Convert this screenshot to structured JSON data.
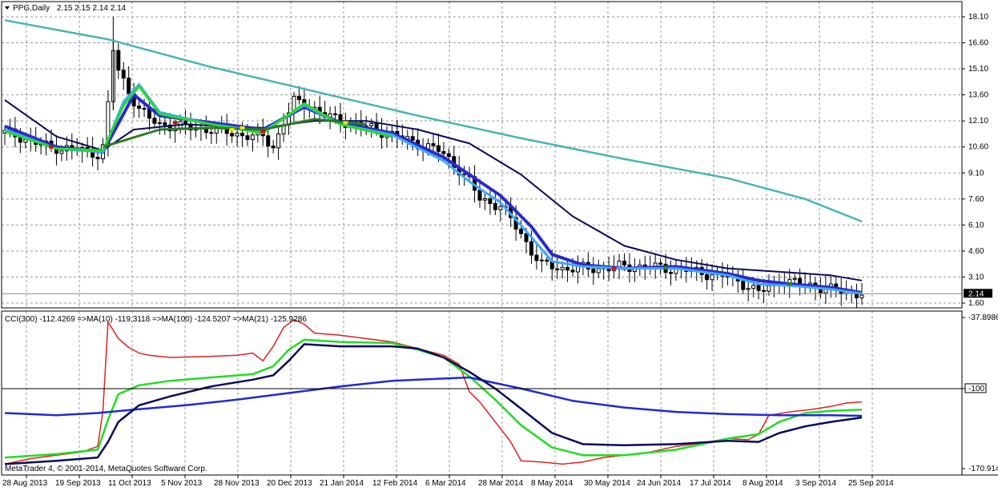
{
  "chart_data": [
    {
      "type": "candlestick",
      "title": "PPG,Daily",
      "ohlc_header": "2.15 2.15 2.14 2.14",
      "y_ticks": [
        "18.10",
        "16.60",
        "15.10",
        "13.60",
        "12.10",
        "10.60",
        "9.10",
        "7.60",
        "6.10",
        "4.60",
        "3.10",
        "1.60"
      ],
      "ylim": [
        1.6,
        18.1
      ],
      "last_price_label": "2.14",
      "last_price": 2.14,
      "close_path": [
        [
          0,
          11.4
        ],
        [
          3,
          11.2
        ],
        [
          6,
          10.8
        ],
        [
          9,
          10.6
        ],
        [
          12,
          10.5
        ],
        [
          15,
          10.4
        ],
        [
          18,
          10.2
        ],
        [
          19,
          10.6
        ],
        [
          20,
          13.0
        ],
        [
          21,
          16.2
        ],
        [
          22,
          15.0
        ],
        [
          24,
          13.8
        ],
        [
          26,
          12.8
        ],
        [
          28,
          12.2
        ],
        [
          30,
          11.9
        ],
        [
          33,
          11.8
        ],
        [
          36,
          11.7
        ],
        [
          40,
          11.6
        ],
        [
          44,
          11.4
        ],
        [
          48,
          11.2
        ],
        [
          50,
          11.2
        ],
        [
          52,
          10.6
        ],
        [
          54,
          12.0
        ],
        [
          56,
          13.2
        ],
        [
          58,
          13.1
        ],
        [
          60,
          12.8
        ],
        [
          62,
          12.4
        ],
        [
          65,
          12.1
        ],
        [
          68,
          11.9
        ],
        [
          72,
          11.6
        ],
        [
          76,
          11.2
        ],
        [
          80,
          10.8
        ],
        [
          84,
          10.4
        ],
        [
          86,
          9.9
        ],
        [
          88,
          9.3
        ],
        [
          90,
          8.6
        ],
        [
          92,
          7.6
        ],
        [
          94,
          7.4
        ],
        [
          96,
          7.2
        ],
        [
          98,
          6.4
        ],
        [
          100,
          5.6
        ],
        [
          102,
          4.6
        ],
        [
          104,
          3.8
        ],
        [
          108,
          3.6
        ],
        [
          112,
          3.6
        ],
        [
          116,
          3.6
        ],
        [
          120,
          3.7
        ],
        [
          124,
          3.7
        ],
        [
          128,
          3.6
        ],
        [
          132,
          3.5
        ],
        [
          136,
          3.3
        ],
        [
          140,
          3.1
        ],
        [
          144,
          2.6
        ],
        [
          146,
          2.2
        ],
        [
          148,
          2.5
        ],
        [
          150,
          2.9
        ],
        [
          152,
          2.8
        ],
        [
          155,
          2.7
        ],
        [
          158,
          2.5
        ],
        [
          161,
          2.3
        ],
        [
          164,
          2.2
        ],
        [
          166,
          2.14
        ]
      ],
      "series": [
        {
          "name": "",
          "color": "#48b4b4",
          "points": [
            [
              0,
              17.9
            ],
            [
              20,
              16.8
            ],
            [
              40,
              15.2
            ],
            [
              60,
              13.8
            ],
            [
              80,
              12.4
            ],
            [
              100,
              11.1
            ],
            [
              120,
              9.9
            ],
            [
              140,
              8.8
            ],
            [
              155,
              7.6
            ],
            [
              166,
              6.3
            ]
          ]
        },
        {
          "name": "",
          "color": "#0a0a5a",
          "points": [
            [
              0,
              13.3
            ],
            [
              10,
              11.2
            ],
            [
              19,
              10.4
            ],
            [
              25,
              11.6
            ],
            [
              35,
              11.9
            ],
            [
              50,
              11.7
            ],
            [
              60,
              12.1
            ],
            [
              70,
              12.1
            ],
            [
              80,
              11.6
            ],
            [
              90,
              10.8
            ],
            [
              100,
              9.0
            ],
            [
              110,
              6.6
            ],
            [
              120,
              4.9
            ],
            [
              130,
              4.1
            ],
            [
              140,
              3.6
            ],
            [
              150,
              3.4
            ],
            [
              160,
              3.2
            ],
            [
              166,
              2.9
            ]
          ]
        },
        {
          "name": "",
          "color": "#2a2ad0",
          "points": [
            [
              0,
              11.8
            ],
            [
              10,
              10.6
            ],
            [
              19,
              10.3
            ],
            [
              25,
              13.6
            ],
            [
              30,
              12.4
            ],
            [
              40,
              12.0
            ],
            [
              50,
              11.6
            ],
            [
              58,
              12.9
            ],
            [
              65,
              12.0
            ],
            [
              75,
              11.4
            ],
            [
              85,
              10.0
            ],
            [
              90,
              9.0
            ],
            [
              96,
              7.8
            ],
            [
              102,
              6.0
            ],
            [
              106,
              4.4
            ],
            [
              112,
              3.8
            ],
            [
              120,
              3.6
            ],
            [
              130,
              3.7
            ],
            [
              140,
              3.3
            ],
            [
              146,
              2.9
            ],
            [
              152,
              2.7
            ],
            [
              160,
              2.5
            ],
            [
              166,
              2.2
            ]
          ]
        },
        {
          "name": "",
          "color": "#3fa8ff",
          "points": [
            [
              0,
              11.6
            ],
            [
              10,
              10.5
            ],
            [
              19,
              10.3
            ],
            [
              23,
              13.2
            ],
            [
              26,
              14.2
            ],
            [
              30,
              12.6
            ],
            [
              40,
              11.9
            ],
            [
              50,
              11.5
            ],
            [
              58,
              13.0
            ],
            [
              65,
              11.9
            ],
            [
              75,
              11.3
            ],
            [
              85,
              9.8
            ],
            [
              90,
              8.6
            ],
            [
              96,
              7.4
            ],
            [
              102,
              5.4
            ],
            [
              106,
              4.0
            ],
            [
              112,
              3.7
            ],
            [
              120,
              3.6
            ],
            [
              130,
              3.6
            ],
            [
              140,
              3.2
            ],
            [
              146,
              2.7
            ],
            [
              152,
              2.6
            ],
            [
              160,
              2.4
            ],
            [
              166,
              2.15
            ]
          ]
        },
        {
          "name": "",
          "color": "#22dd22",
          "points": [
            [
              0,
              11.5
            ],
            [
              10,
              10.5
            ],
            [
              19,
              10.4
            ],
            [
              23,
              13.0
            ],
            [
              26,
              14.1
            ],
            [
              30,
              12.5
            ],
            [
              40,
              11.9
            ],
            [
              50,
              11.4
            ],
            [
              58,
              13.1
            ],
            [
              65,
              11.9
            ],
            [
              75,
              11.2
            ]
          ]
        },
        {
          "name": "",
          "color": "#2a7a2a",
          "points": [
            [
              19,
              10.6
            ],
            [
              30,
              11.6
            ],
            [
              40,
              11.7
            ],
            [
              50,
              11.6
            ],
            [
              60,
              12.2
            ],
            [
              70,
              11.9
            ]
          ]
        }
      ],
      "x_ticks": [
        "28 Aug 2013",
        "19 Sep 2013",
        "11 Oct 2013",
        "5 Nov 2013",
        "28 Nov 2013",
        "20 Dec 2013",
        "21 Jan 2014",
        "12 Feb 2014",
        "6 Mar 2014",
        "28 Mar 2014",
        "8 May 2014",
        "30 May 2014",
        "24 Jun 2014",
        "17 Jul 2014",
        "8 Aug 2014",
        "3 Sep 2014",
        "25 Sep 2014"
      ]
    },
    {
      "type": "line",
      "title": "CCI(300) -112.4269  =>MA(10) -119.3118  =>MA(100) -124.5207  =>MA(21) -125.9286",
      "y_ticks": [
        "-37.8986",
        "-100",
        "-170.914"
      ],
      "ylim": [
        -172,
        -36
      ],
      "level_line": -100,
      "series": [
        {
          "name": "CCI(300)",
          "color": "#e02020",
          "points": [
            [
              0,
              -168
            ],
            [
              5,
              -163
            ],
            [
              10,
              -160
            ],
            [
              15,
              -157
            ],
            [
              18,
              -152
            ],
            [
              19,
              -120
            ],
            [
              20,
              -40
            ],
            [
              22,
              -55
            ],
            [
              24,
              -63
            ],
            [
              26,
              -68
            ],
            [
              28,
              -70
            ],
            [
              32,
              -72
            ],
            [
              40,
              -71
            ],
            [
              45,
              -70
            ],
            [
              48,
              -68
            ],
            [
              50,
              -75
            ],
            [
              52,
              -62
            ],
            [
              54,
              -45
            ],
            [
              56,
              -38
            ],
            [
              58,
              -42
            ],
            [
              60,
              -50
            ],
            [
              65,
              -52
            ],
            [
              70,
              -55
            ],
            [
              75,
              -58
            ],
            [
              80,
              -64
            ],
            [
              85,
              -70
            ],
            [
              88,
              -78
            ],
            [
              90,
              -103
            ],
            [
              92,
              -112
            ],
            [
              95,
              -130
            ],
            [
              98,
              -148
            ],
            [
              100,
              -165
            ],
            [
              104,
              -166
            ],
            [
              108,
              -168
            ],
            [
              112,
              -166
            ],
            [
              116,
              -162
            ],
            [
              120,
              -160
            ],
            [
              125,
              -157
            ],
            [
              130,
              -152
            ],
            [
              135,
              -149
            ],
            [
              140,
              -145
            ],
            [
              144,
              -146
            ],
            [
              146,
              -141
            ],
            [
              148,
              -124
            ],
            [
              152,
              -121
            ],
            [
              156,
              -119
            ],
            [
              160,
              -116
            ],
            [
              163,
              -113
            ],
            [
              166,
              -112
            ]
          ]
        },
        {
          "name": "MA(10)",
          "color": "#22dd22",
          "points": [
            [
              0,
              -162
            ],
            [
              10,
              -159
            ],
            [
              18,
              -155
            ],
            [
              20,
              -128
            ],
            [
              22,
              -105
            ],
            [
              26,
              -97
            ],
            [
              32,
              -93
            ],
            [
              40,
              -90
            ],
            [
              48,
              -87
            ],
            [
              52,
              -80
            ],
            [
              55,
              -65
            ],
            [
              58,
              -56
            ],
            [
              65,
              -58
            ],
            [
              75,
              -59
            ],
            [
              80,
              -65
            ],
            [
              85,
              -72
            ],
            [
              90,
              -89
            ],
            [
              95,
              -110
            ],
            [
              100,
              -133
            ],
            [
              106,
              -153
            ],
            [
              112,
              -160
            ],
            [
              120,
              -160
            ],
            [
              130,
              -155
            ],
            [
              140,
              -145
            ],
            [
              146,
              -141
            ],
            [
              150,
              -130
            ],
            [
              155,
              -122
            ],
            [
              160,
              -120
            ],
            [
              166,
              -119
            ]
          ]
        },
        {
          "name": "MA(100)",
          "color": "#1e2ad6",
          "points": [
            [
              0,
              -122
            ],
            [
              10,
              -124
            ],
            [
              18,
              -122
            ],
            [
              25,
              -119
            ],
            [
              35,
              -115
            ],
            [
              45,
              -110
            ],
            [
              55,
              -104
            ],
            [
              65,
              -98
            ],
            [
              75,
              -93
            ],
            [
              85,
              -91
            ],
            [
              90,
              -90
            ],
            [
              95,
              -95
            ],
            [
              100,
              -100
            ],
            [
              110,
              -111
            ],
            [
              120,
              -117
            ],
            [
              130,
              -121
            ],
            [
              140,
              -123
            ],
            [
              150,
              -124
            ],
            [
              160,
              -124
            ],
            [
              166,
              -124.5
            ]
          ]
        },
        {
          "name": "MA(21)",
          "color": "#0a0a5a",
          "points": [
            [
              0,
              -168
            ],
            [
              10,
              -165
            ],
            [
              18,
              -162
            ],
            [
              20,
              -148
            ],
            [
              22,
              -130
            ],
            [
              26,
              -115
            ],
            [
              32,
              -107
            ],
            [
              40,
              -98
            ],
            [
              48,
              -92
            ],
            [
              52,
              -88
            ],
            [
              55,
              -75
            ],
            [
              58,
              -60
            ],
            [
              65,
              -62
            ],
            [
              75,
              -62
            ],
            [
              80,
              -64
            ],
            [
              85,
              -72
            ],
            [
              90,
              -85
            ],
            [
              95,
              -100
            ],
            [
              100,
              -118
            ],
            [
              106,
              -140
            ],
            [
              112,
              -150
            ],
            [
              120,
              -151
            ],
            [
              130,
              -150
            ],
            [
              140,
              -147
            ],
            [
              146,
              -148
            ],
            [
              150,
              -140
            ],
            [
              155,
              -134
            ],
            [
              160,
              -130
            ],
            [
              166,
              -126
            ]
          ]
        }
      ]
    }
  ],
  "copyright": "MetaTrader 4, © 2001-2014, MetaQuotes Software Corp."
}
